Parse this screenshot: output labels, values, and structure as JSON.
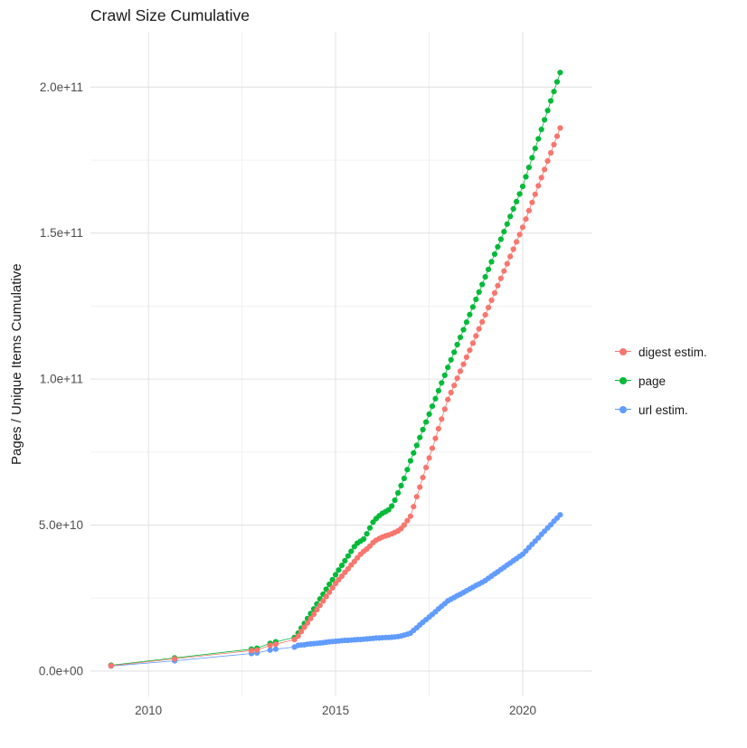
{
  "chart_data": {
    "type": "scatter",
    "title": "Crawl Size Cumulative",
    "xlabel": "",
    "ylabel": "Pages / Unique Items Cumulative",
    "x_ticks": {
      "values": [
        2010,
        2015,
        2020
      ],
      "labels": [
        "2010",
        "2015",
        "2020"
      ],
      "minor": [
        2012.5,
        2017.5
      ]
    },
    "y_ticks": {
      "values_billions": [
        0,
        50,
        100,
        150,
        200
      ],
      "labels": [
        "0.0e+00",
        "5.0e+10",
        "1.0e+11",
        "1.5e+11",
        "2.0e+11"
      ],
      "minor_billions": [
        25,
        75,
        125,
        175
      ]
    },
    "xlim": [
      2008.45,
      2021.86
    ],
    "ylim_billions": [
      -8.7,
      219
    ],
    "y_unit_note": "y values stored in billions (1e9)",
    "legend_position": "right",
    "grid_major_color": "#e3e3e3",
    "grid_minor_color": "#efefef",
    "tick_label_color": "#4d4d4d",
    "series": [
      {
        "name": "digest estim.",
        "color": "#F8766D",
        "points": [
          [
            2009,
            1.8
          ],
          [
            2010.7,
            4.2
          ],
          [
            2012.75,
            7
          ],
          [
            2012.9,
            7.2
          ],
          [
            2013.25,
            8.8
          ],
          [
            2013.4,
            9.2
          ],
          [
            2013.9,
            10.8
          ],
          [
            2014,
            12
          ],
          [
            2014.083,
            13.5
          ],
          [
            2014.167,
            15
          ],
          [
            2014.25,
            16.5
          ],
          [
            2014.333,
            18
          ],
          [
            2014.417,
            19.5
          ],
          [
            2014.5,
            21
          ],
          [
            2014.583,
            22.5
          ],
          [
            2014.667,
            24
          ],
          [
            2014.75,
            25.5
          ],
          [
            2014.833,
            27
          ],
          [
            2014.917,
            28.5
          ],
          [
            2015,
            30
          ],
          [
            2015.083,
            31.3
          ],
          [
            2015.167,
            32.5
          ],
          [
            2015.25,
            33.8
          ],
          [
            2015.333,
            35
          ],
          [
            2015.417,
            36.3
          ],
          [
            2015.5,
            37.5
          ],
          [
            2015.583,
            38.8
          ],
          [
            2015.667,
            40
          ],
          [
            2015.75,
            41
          ],
          [
            2015.833,
            41.8
          ],
          [
            2015.917,
            42.8
          ],
          [
            2016,
            44
          ],
          [
            2016.083,
            44.8
          ],
          [
            2016.167,
            45.4
          ],
          [
            2016.25,
            45.9
          ],
          [
            2016.333,
            46.3
          ],
          [
            2016.417,
            46.6
          ],
          [
            2016.5,
            47
          ],
          [
            2016.583,
            47.5
          ],
          [
            2016.667,
            48
          ],
          [
            2016.75,
            48.8
          ],
          [
            2016.833,
            50
          ],
          [
            2016.917,
            51.5
          ],
          [
            2017,
            53
          ],
          [
            2017.083,
            56.3
          ],
          [
            2017.167,
            59.7
          ],
          [
            2017.25,
            63
          ],
          [
            2017.333,
            66.3
          ],
          [
            2017.417,
            69.7
          ],
          [
            2017.5,
            73
          ],
          [
            2017.583,
            76.3
          ],
          [
            2017.667,
            79.7
          ],
          [
            2017.75,
            83
          ],
          [
            2017.833,
            86.3
          ],
          [
            2017.917,
            89.7
          ],
          [
            2018,
            93
          ],
          [
            2018.083,
            95.4
          ],
          [
            2018.167,
            97.8
          ],
          [
            2018.25,
            100.3
          ],
          [
            2018.333,
            102.7
          ],
          [
            2018.417,
            105.1
          ],
          [
            2018.5,
            107.5
          ],
          [
            2018.583,
            109.9
          ],
          [
            2018.667,
            112.3
          ],
          [
            2018.75,
            114.8
          ],
          [
            2018.833,
            117.2
          ],
          [
            2018.917,
            119.6
          ],
          [
            2019,
            122
          ],
          [
            2019.083,
            124.5
          ],
          [
            2019.167,
            127
          ],
          [
            2019.25,
            129.5
          ],
          [
            2019.333,
            132
          ],
          [
            2019.417,
            134.5
          ],
          [
            2019.5,
            137
          ],
          [
            2019.583,
            139.5
          ],
          [
            2019.667,
            142
          ],
          [
            2019.75,
            144.5
          ],
          [
            2019.833,
            147
          ],
          [
            2019.917,
            149.5
          ],
          [
            2020,
            152
          ],
          [
            2020.083,
            154.8
          ],
          [
            2020.167,
            157.7
          ],
          [
            2020.25,
            160.5
          ],
          [
            2020.333,
            163.3
          ],
          [
            2020.417,
            166.2
          ],
          [
            2020.5,
            169
          ],
          [
            2020.583,
            171.8
          ],
          [
            2020.667,
            174.7
          ],
          [
            2020.75,
            177.5
          ],
          [
            2020.833,
            180.3
          ],
          [
            2020.917,
            183.2
          ],
          [
            2021,
            186
          ]
        ]
      },
      {
        "name": "page",
        "color": "#00BA38",
        "points": [
          [
            2009,
            2
          ],
          [
            2010.7,
            4.5
          ],
          [
            2012.75,
            7.5
          ],
          [
            2012.9,
            7.8
          ],
          [
            2013.25,
            9.5
          ],
          [
            2013.4,
            10
          ],
          [
            2013.9,
            11.5
          ],
          [
            2014,
            13
          ],
          [
            2014.083,
            14.7
          ],
          [
            2014.167,
            16.3
          ],
          [
            2014.25,
            18
          ],
          [
            2014.333,
            19.7
          ],
          [
            2014.417,
            21.3
          ],
          [
            2014.5,
            23
          ],
          [
            2014.583,
            24.7
          ],
          [
            2014.667,
            26.3
          ],
          [
            2014.75,
            28
          ],
          [
            2014.833,
            29.7
          ],
          [
            2014.917,
            31.3
          ],
          [
            2015,
            33
          ],
          [
            2015.083,
            34.6
          ],
          [
            2015.167,
            36.2
          ],
          [
            2015.25,
            37.8
          ],
          [
            2015.333,
            39.4
          ],
          [
            2015.417,
            41
          ],
          [
            2015.5,
            42.6
          ],
          [
            2015.583,
            43.8
          ],
          [
            2015.667,
            44.5
          ],
          [
            2015.75,
            45.2
          ],
          [
            2015.833,
            47
          ],
          [
            2015.917,
            49
          ],
          [
            2016,
            51
          ],
          [
            2016.083,
            52.2
          ],
          [
            2016.167,
            53.2
          ],
          [
            2016.25,
            54
          ],
          [
            2016.333,
            54.6
          ],
          [
            2016.417,
            55.2
          ],
          [
            2016.5,
            56.5
          ],
          [
            2016.583,
            58.5
          ],
          [
            2016.667,
            61
          ],
          [
            2016.75,
            63.5
          ],
          [
            2016.833,
            66
          ],
          [
            2016.917,
            69
          ],
          [
            2017,
            72
          ],
          [
            2017.083,
            74.7
          ],
          [
            2017.167,
            77.3
          ],
          [
            2017.25,
            80
          ],
          [
            2017.333,
            82.7
          ],
          [
            2017.417,
            85.3
          ],
          [
            2017.5,
            88
          ],
          [
            2017.583,
            90.7
          ],
          [
            2017.667,
            93.3
          ],
          [
            2017.75,
            96
          ],
          [
            2017.833,
            98.7
          ],
          [
            2017.917,
            101.3
          ],
          [
            2018,
            104
          ],
          [
            2018.083,
            106.6
          ],
          [
            2018.167,
            109.2
          ],
          [
            2018.25,
            111.8
          ],
          [
            2018.333,
            114.3
          ],
          [
            2018.417,
            116.9
          ],
          [
            2018.5,
            119.5
          ],
          [
            2018.583,
            122.1
          ],
          [
            2018.667,
            124.7
          ],
          [
            2018.75,
            127.3
          ],
          [
            2018.833,
            129.8
          ],
          [
            2018.917,
            132.4
          ],
          [
            2019,
            135
          ],
          [
            2019.083,
            137.6
          ],
          [
            2019.167,
            140.2
          ],
          [
            2019.25,
            142.8
          ],
          [
            2019.333,
            145.3
          ],
          [
            2019.417,
            147.9
          ],
          [
            2019.5,
            150.5
          ],
          [
            2019.583,
            153.1
          ],
          [
            2019.667,
            155.7
          ],
          [
            2019.75,
            158.3
          ],
          [
            2019.833,
            160.8
          ],
          [
            2019.917,
            163.4
          ],
          [
            2020,
            166
          ],
          [
            2020.083,
            169.3
          ],
          [
            2020.167,
            172.5
          ],
          [
            2020.25,
            175.8
          ],
          [
            2020.333,
            179
          ],
          [
            2020.417,
            182.3
          ],
          [
            2020.5,
            185.5
          ],
          [
            2020.583,
            188.8
          ],
          [
            2020.667,
            192
          ],
          [
            2020.75,
            195.3
          ],
          [
            2020.833,
            198.5
          ],
          [
            2020.917,
            201.8
          ],
          [
            2021,
            205
          ]
        ]
      },
      {
        "name": "url estim.",
        "color": "#619CFF",
        "points": [
          [
            2009,
            1.7
          ],
          [
            2010.7,
            3.5
          ],
          [
            2012.75,
            6
          ],
          [
            2012.9,
            6.2
          ],
          [
            2013.25,
            7.2
          ],
          [
            2013.4,
            7.5
          ],
          [
            2013.9,
            8.2
          ],
          [
            2014,
            8.8
          ],
          [
            2014.083,
            8.9
          ],
          [
            2014.167,
            9
          ],
          [
            2014.25,
            9.2
          ],
          [
            2014.333,
            9.3
          ],
          [
            2014.417,
            9.4
          ],
          [
            2014.5,
            9.5
          ],
          [
            2014.583,
            9.6
          ],
          [
            2014.667,
            9.7
          ],
          [
            2014.75,
            9.9
          ],
          [
            2014.833,
            10
          ],
          [
            2014.917,
            10.1
          ],
          [
            2015,
            10.2
          ],
          [
            2015.083,
            10.3
          ],
          [
            2015.167,
            10.4
          ],
          [
            2015.25,
            10.5
          ],
          [
            2015.333,
            10.5
          ],
          [
            2015.417,
            10.6
          ],
          [
            2015.5,
            10.7
          ],
          [
            2015.583,
            10.8
          ],
          [
            2015.667,
            10.8
          ],
          [
            2015.75,
            10.9
          ],
          [
            2015.833,
            11
          ],
          [
            2015.917,
            11.1
          ],
          [
            2016,
            11.2
          ],
          [
            2016.083,
            11.3
          ],
          [
            2016.167,
            11.3
          ],
          [
            2016.25,
            11.4
          ],
          [
            2016.333,
            11.5
          ],
          [
            2016.417,
            11.5
          ],
          [
            2016.5,
            11.6
          ],
          [
            2016.583,
            11.7
          ],
          [
            2016.667,
            11.8
          ],
          [
            2016.75,
            12
          ],
          [
            2016.833,
            12.3
          ],
          [
            2016.917,
            12.6
          ],
          [
            2017,
            13
          ],
          [
            2017.083,
            13.9
          ],
          [
            2017.167,
            14.8
          ],
          [
            2017.25,
            15.8
          ],
          [
            2017.333,
            16.7
          ],
          [
            2017.417,
            17.6
          ],
          [
            2017.5,
            18.5
          ],
          [
            2017.583,
            19.4
          ],
          [
            2017.667,
            20.3
          ],
          [
            2017.75,
            21.3
          ],
          [
            2017.833,
            22.2
          ],
          [
            2017.917,
            23.1
          ],
          [
            2018,
            24
          ],
          [
            2018.083,
            24.6
          ],
          [
            2018.167,
            25.2
          ],
          [
            2018.25,
            25.8
          ],
          [
            2018.333,
            26.3
          ],
          [
            2018.417,
            26.9
          ],
          [
            2018.5,
            27.5
          ],
          [
            2018.583,
            28.1
          ],
          [
            2018.667,
            28.7
          ],
          [
            2018.75,
            29.3
          ],
          [
            2018.833,
            29.8
          ],
          [
            2018.917,
            30.4
          ],
          [
            2019,
            31
          ],
          [
            2019.083,
            31.8
          ],
          [
            2019.167,
            32.5
          ],
          [
            2019.25,
            33.3
          ],
          [
            2019.333,
            34
          ],
          [
            2019.417,
            34.8
          ],
          [
            2019.5,
            35.5
          ],
          [
            2019.583,
            36.3
          ],
          [
            2019.667,
            37
          ],
          [
            2019.75,
            37.8
          ],
          [
            2019.833,
            38.5
          ],
          [
            2019.917,
            39.3
          ],
          [
            2020,
            40
          ],
          [
            2020.083,
            41.1
          ],
          [
            2020.167,
            42.3
          ],
          [
            2020.25,
            43.4
          ],
          [
            2020.333,
            44.5
          ],
          [
            2020.417,
            45.6
          ],
          [
            2020.5,
            46.8
          ],
          [
            2020.583,
            47.9
          ],
          [
            2020.667,
            49
          ],
          [
            2020.75,
            50.1
          ],
          [
            2020.833,
            51.3
          ],
          [
            2020.917,
            52.4
          ],
          [
            2021,
            53.5
          ]
        ]
      }
    ]
  }
}
